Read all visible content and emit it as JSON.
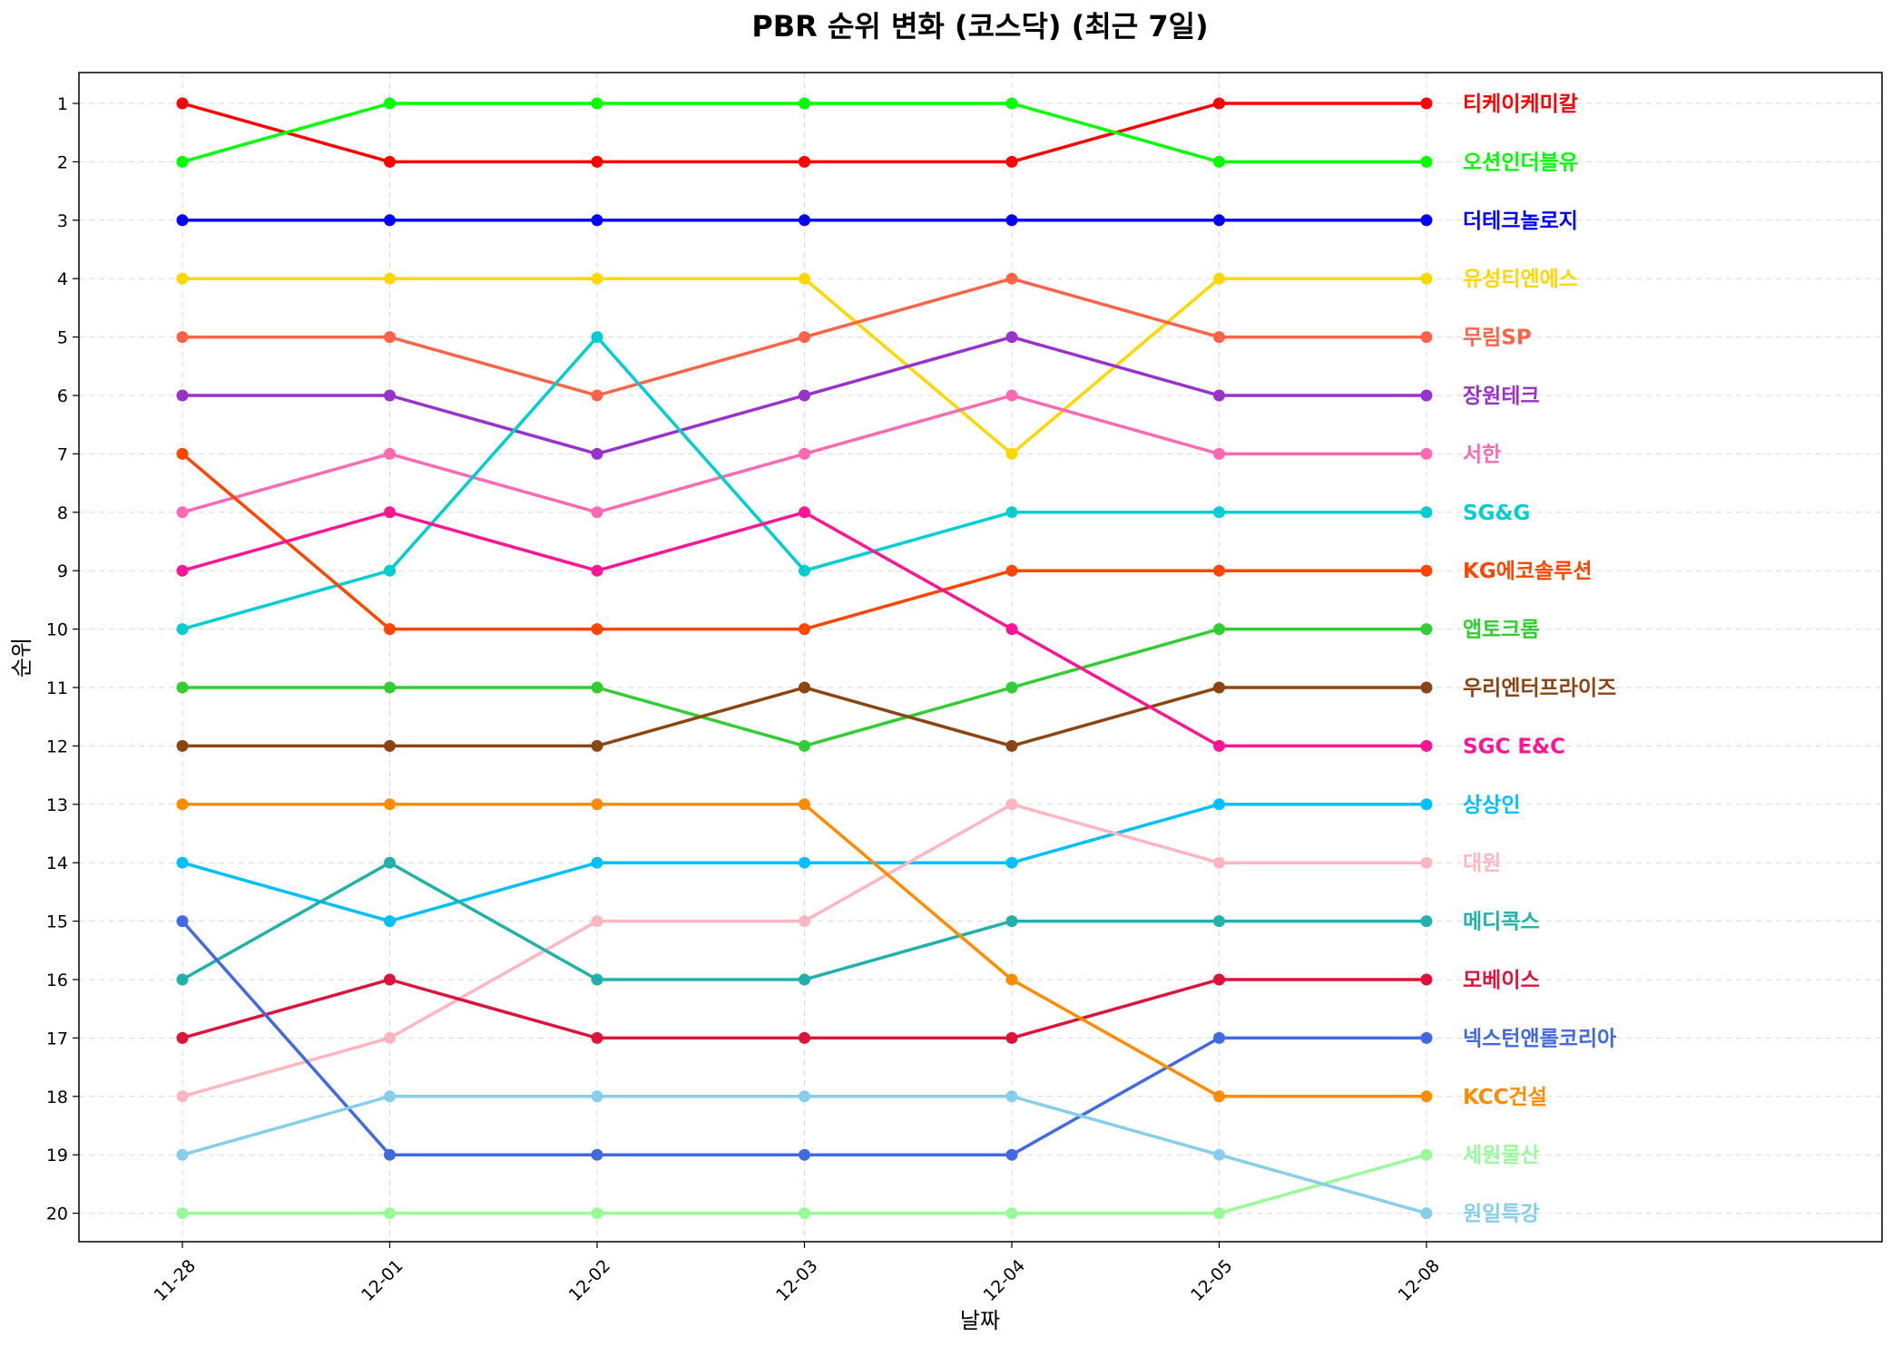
{
  "chart_data": {
    "type": "line",
    "title": "PBR 순위 변화 (코스닥) (최근 7일)",
    "xlabel": "날짜",
    "ylabel": "순위",
    "x": [
      "11-28",
      "12-01",
      "12-02",
      "12-03",
      "12-04",
      "12-05",
      "12-08"
    ],
    "yticks": [
      1,
      2,
      3,
      4,
      5,
      6,
      7,
      8,
      9,
      10,
      11,
      12,
      13,
      14,
      15,
      16,
      17,
      18,
      19,
      20
    ],
    "ylim": [
      20.5,
      0.5
    ],
    "y_inverted": true,
    "grid": true,
    "legend": "direct labels at right end of lines",
    "series": [
      {
        "name": "티케이케미칼",
        "color": "#ff0000",
        "values": [
          1,
          2,
          2,
          2,
          2,
          1,
          1
        ]
      },
      {
        "name": "오션인더블유",
        "color": "#00ff00",
        "values": [
          2,
          1,
          1,
          1,
          1,
          2,
          2
        ]
      },
      {
        "name": "더테크놀로지",
        "color": "#0000ff",
        "values": [
          3,
          3,
          3,
          3,
          3,
          3,
          3
        ]
      },
      {
        "name": "유성티엔에스",
        "color": "#ffd700",
        "values": [
          4,
          4,
          4,
          4,
          7,
          4,
          4
        ]
      },
      {
        "name": "무림SP",
        "color": "#ff6347",
        "values": [
          5,
          5,
          6,
          5,
          4,
          5,
          5
        ]
      },
      {
        "name": "장원테크",
        "color": "#9932cc",
        "values": [
          6,
          6,
          7,
          6,
          5,
          6,
          6
        ]
      },
      {
        "name": "서한",
        "color": "#ff69b4",
        "values": [
          8,
          7,
          8,
          7,
          6,
          7,
          7
        ]
      },
      {
        "name": "SG&G",
        "color": "#00ced1",
        "values": [
          10,
          9,
          5,
          9,
          8,
          8,
          8
        ]
      },
      {
        "name": "KG에코솔루션",
        "color": "#ff4500",
        "values": [
          7,
          10,
          10,
          10,
          9,
          9,
          9
        ]
      },
      {
        "name": "앱토크롬",
        "color": "#32cd32",
        "values": [
          11,
          11,
          11,
          12,
          11,
          10,
          10
        ]
      },
      {
        "name": "우리엔터프라이즈",
        "color": "#8b4513",
        "values": [
          12,
          12,
          12,
          11,
          12,
          11,
          11
        ]
      },
      {
        "name": "SGC E&C",
        "color": "#ff1493",
        "values": [
          9,
          8,
          9,
          8,
          10,
          12,
          12
        ]
      },
      {
        "name": "상상인",
        "color": "#00bfff",
        "values": [
          14,
          15,
          14,
          14,
          14,
          13,
          13
        ]
      },
      {
        "name": "대원",
        "color": "#ffb6c1",
        "values": [
          18,
          17,
          15,
          15,
          13,
          14,
          14
        ]
      },
      {
        "name": "메디콕스",
        "color": "#20b2aa",
        "values": [
          16,
          14,
          16,
          16,
          15,
          15,
          15
        ]
      },
      {
        "name": "모베이스",
        "color": "#dc143c",
        "values": [
          17,
          16,
          17,
          17,
          17,
          16,
          16
        ]
      },
      {
        "name": "넥스턴앤롤코리아",
        "color": "#4169e1",
        "values": [
          15,
          19,
          19,
          19,
          19,
          17,
          17
        ]
      },
      {
        "name": "KCC건설",
        "color": "#ff8c00",
        "values": [
          13,
          13,
          13,
          13,
          16,
          18,
          18
        ]
      },
      {
        "name": "세원물산",
        "color": "#98fb98",
        "values": [
          20,
          20,
          20,
          20,
          20,
          20,
          19
        ]
      },
      {
        "name": "원일특강",
        "color": "#87ceeb",
        "values": [
          19,
          18,
          18,
          18,
          18,
          19,
          20
        ]
      }
    ]
  }
}
